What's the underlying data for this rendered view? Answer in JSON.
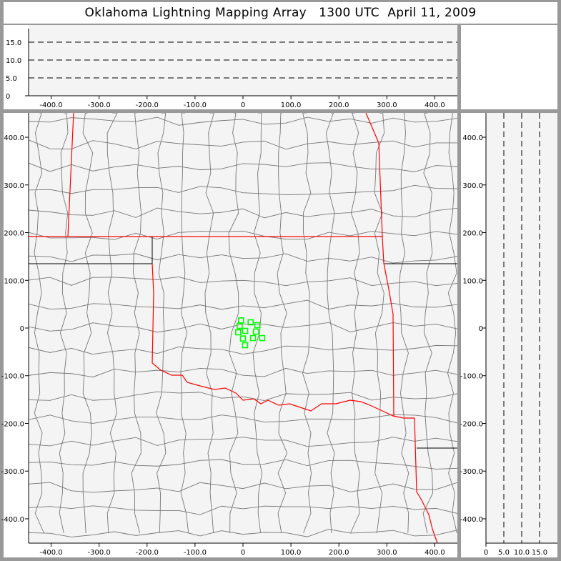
{
  "title": "Oklahoma Lightning Mapping Array   1300 UTC  April 11, 2009",
  "colors": {
    "station": "#00ff00",
    "state_border": "#ff0000",
    "county_border": "#777777",
    "panel_bg": "#f4f4f4",
    "frame": "#999999"
  },
  "map": {
    "x_range_km": [
      -447,
      447
    ],
    "y_range_km": [
      -451,
      451
    ],
    "x_ticks": [
      {
        "v": -400,
        "label": "-400.0"
      },
      {
        "v": -300,
        "label": "-300.0"
      },
      {
        "v": -200,
        "label": "-200.0"
      },
      {
        "v": -100,
        "label": "-100.0"
      },
      {
        "v": 0,
        "label": "0"
      },
      {
        "v": 100,
        "label": "100.0"
      },
      {
        "v": 200,
        "label": "200.0"
      },
      {
        "v": 300,
        "label": "300.0"
      },
      {
        "v": 400,
        "label": "400.0"
      }
    ],
    "y_ticks": [
      {
        "v": 400,
        "label": "400.0"
      },
      {
        "v": 300,
        "label": "300.0"
      },
      {
        "v": 200,
        "label": "200.0"
      },
      {
        "v": 100,
        "label": "100.0"
      },
      {
        "v": 0,
        "label": "0"
      },
      {
        "v": -100,
        "label": "-100.0"
      },
      {
        "v": -200,
        "label": "-200.0"
      },
      {
        "v": -300,
        "label": "-300.0"
      },
      {
        "v": -400,
        "label": "-400.0"
      }
    ],
    "stations": [
      [
        -4,
        16
      ],
      [
        -7,
        4.5
      ],
      [
        -10,
        -9
      ],
      [
        4.5,
        -6
      ],
      [
        16,
        12
      ],
      [
        30,
        6
      ],
      [
        27,
        -7.5
      ],
      [
        0,
        -22
      ],
      [
        21,
        -21
      ],
      [
        40,
        -21
      ],
      [
        4.5,
        -36
      ]
    ]
  },
  "altitude_top": {
    "range_km": [
      0,
      19
    ],
    "ticks": [
      {
        "v": 0,
        "label": "0"
      },
      {
        "v": 5,
        "label": "5.0"
      },
      {
        "v": 10,
        "label": "10.0"
      },
      {
        "v": 15,
        "label": "15.0"
      }
    ],
    "dashed_levels": [
      5,
      10,
      15
    ]
  },
  "altitude_right": {
    "range_km": [
      0,
      20
    ],
    "ticks": [
      {
        "v": 0,
        "label": "0"
      },
      {
        "v": 5,
        "label": "5.0"
      },
      {
        "v": 10,
        "label": "10.0"
      },
      {
        "v": 15,
        "label": "15.0"
      }
    ],
    "dashed_levels": [
      5,
      10,
      15
    ]
  }
}
